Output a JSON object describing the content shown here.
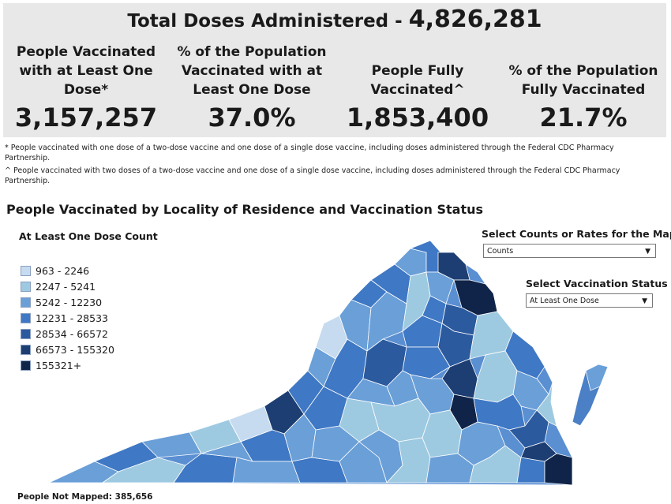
{
  "header": {
    "total_label": "Total Doses Administered - ",
    "total_value": "4,826,281"
  },
  "stats": [
    {
      "label_lines": [
        "People Vaccinated",
        "with at Least One",
        "Dose*"
      ],
      "value": "3,157,257"
    },
    {
      "label_lines": [
        "% of the Population",
        "Vaccinated with at",
        "Least One Dose"
      ],
      "value": "37.0%"
    },
    {
      "label_lines": [
        "People Fully",
        "Vaccinated^"
      ],
      "value": "1,853,400"
    },
    {
      "label_lines": [
        "% of the Population",
        "Fully Vaccinated"
      ],
      "value": "21.7%"
    }
  ],
  "notes": [
    "* People vaccinated with one dose of a two-dose vaccine and one dose of a single dose vaccine, including doses administered through the Federal CDC Pharmacy Partnership.",
    "^ People vaccinated with two doses of a two-dose vaccine and one dose of a single dose vaccine, including doses administered through the Federal CDC Pharmacy Partnership."
  ],
  "map": {
    "title": "People Vaccinated by Locality of Residence and Vaccination Status",
    "legend_title": "At Least One Dose Count",
    "legend": [
      {
        "label": "963 - 2246",
        "color": "#c6dbef"
      },
      {
        "label": "2247 - 5241",
        "color": "#9ecae1"
      },
      {
        "label": "5242 - 12230",
        "color": "#6a9fd8"
      },
      {
        "label": "12231 - 28533",
        "color": "#3f78c4"
      },
      {
        "label": "28534 - 66572",
        "color": "#2c5a9e"
      },
      {
        "label": "66573 - 155320",
        "color": "#1d3e73"
      },
      {
        "label": "155321+",
        "color": "#0f2448"
      }
    ],
    "not_mapped": "People Not Mapped: 385,656"
  },
  "controls": {
    "counts_label": "Select Counts or Rates for the Map",
    "counts_value": "Counts",
    "status_label": "Select Vaccination Status",
    "status_value": "At Least One Dose"
  }
}
